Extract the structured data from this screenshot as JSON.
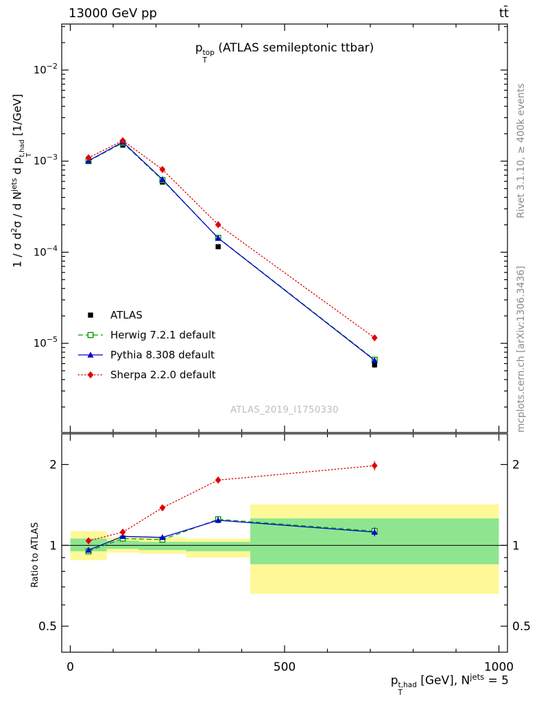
{
  "header": {
    "left": "13000 GeV pp",
    "right": "tt̄"
  },
  "right_labels": {
    "rivet": "Rivet 3.1.10, ≥ 400k events",
    "mcplots": "mcplots.cern.ch [arXiv:1306.3436]"
  },
  "watermark": "ATLAS_2019_I1750330",
  "chart_data": [
    {
      "id": "main",
      "type": "line",
      "yscale": "log",
      "title": "p_{T}^{top} (ATLAS semileptonic ttbar)",
      "ylabel": "1 / σ d^{2}σ / d N^{jets} d p_{T}^{t,had} [1/GeV]",
      "xlim": [
        -20,
        1020
      ],
      "ylim": [
        1.05e-06,
        0.032
      ],
      "xticks": {
        "major": [
          0,
          500,
          1000
        ],
        "minor_step": 100
      },
      "yticks": {
        "decades": [
          -5,
          -4,
          -3,
          -2
        ]
      },
      "x": [
        42.5,
        122.5,
        215,
        345,
        710
      ],
      "bin_edges": [
        0,
        85,
        160,
        270,
        420,
        1000
      ],
      "series": [
        {
          "name": "ATLAS",
          "color": "#000000",
          "line": "none",
          "marker": "square-filled",
          "values": [
            0.00105,
            0.0015,
            0.00059,
            0.000115,
            5.8e-06
          ],
          "yerr": [
            4e-05,
            5e-05,
            2.5e-05,
            6e-06,
            4e-07
          ]
        },
        {
          "name": "Herwig 7.2.1 default",
          "color": "#009c00",
          "line": "dashed",
          "marker": "square-open",
          "values": [
            0.001,
            0.00159,
            0.00062,
            0.000144,
            6.6e-06
          ],
          "yerr": [
            2e-05,
            2e-05,
            1.5e-05,
            4e-06,
            3e-07
          ]
        },
        {
          "name": "Pythia 8.308 default",
          "color": "#0000cc",
          "line": "solid",
          "marker": "triangle-filled",
          "values": [
            0.00101,
            0.00162,
            0.00063,
            0.000143,
            6.5e-06
          ],
          "yerr": [
            2e-05,
            2e-05,
            1.5e-05,
            4e-06,
            3e-07
          ]
        },
        {
          "name": "Sherpa 2.2.0 default",
          "color": "#e10000",
          "line": "dotted",
          "marker": "diamond-filled",
          "values": [
            0.00109,
            0.00168,
            0.00081,
            0.000201,
            1.15e-05
          ],
          "yerr": [
            3e-05,
            3e-05,
            2e-05,
            6e-06,
            6e-07
          ]
        }
      ]
    },
    {
      "id": "ratio",
      "type": "line",
      "yscale": "log",
      "ylabel": "Ratio to ATLAS",
      "xlabel": "p_{T}^{t,had} [GeV], N^{jets} = 5",
      "xlim": [
        -20,
        1020
      ],
      "ylim": [
        0.4,
        2.6
      ],
      "xticks": {
        "major": [
          0,
          500,
          1000
        ],
        "minor_step": 100,
        "labels": [
          "0",
          "500",
          "1000"
        ]
      },
      "yticks": {
        "labeled": [
          0.5,
          1,
          2
        ]
      },
      "refline": 1,
      "bands": {
        "edges": [
          0,
          85,
          160,
          270,
          420,
          1000
        ],
        "yellow_color": "#fff899",
        "green_color": "#8fe58f",
        "yellow": [
          [
            0.88,
            1.13
          ],
          [
            0.94,
            1.07
          ],
          [
            0.93,
            1.07
          ],
          [
            0.9,
            1.06
          ],
          [
            0.66,
            1.42
          ]
        ],
        "green": [
          [
            0.95,
            1.06
          ],
          [
            0.97,
            1.04
          ],
          [
            0.96,
            1.03
          ],
          [
            0.95,
            1.03
          ],
          [
            0.85,
            1.26
          ]
        ]
      },
      "x": [
        42.5,
        122.5,
        215,
        345,
        710
      ],
      "series": [
        {
          "name": "Herwig 7.2.1 default",
          "color": "#009c00",
          "line": "dashed",
          "marker": "square-open",
          "values": [
            0.95,
            1.06,
            1.05,
            1.25,
            1.13
          ],
          "yerr": [
            0.02,
            0.015,
            0.02,
            0.03,
            0.04
          ]
        },
        {
          "name": "Pythia 8.308 default",
          "color": "#0000cc",
          "line": "solid",
          "marker": "triangle-filled",
          "values": [
            0.96,
            1.08,
            1.07,
            1.24,
            1.12
          ],
          "yerr": [
            0.02,
            0.015,
            0.02,
            0.03,
            0.04
          ]
        },
        {
          "name": "Sherpa 2.2.0 default",
          "color": "#e10000",
          "line": "dotted",
          "marker": "diamond-filled",
          "values": [
            1.04,
            1.12,
            1.38,
            1.75,
            1.98
          ],
          "yerr": [
            0.03,
            0.02,
            0.03,
            0.04,
            0.08
          ]
        }
      ]
    }
  ]
}
